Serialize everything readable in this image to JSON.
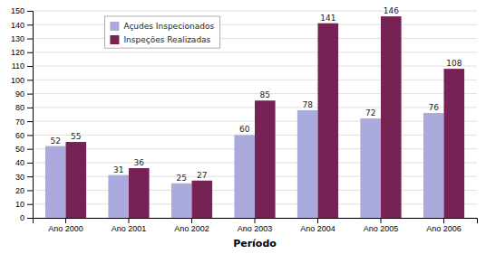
{
  "chart_data": {
    "type": "bar",
    "xlabel": "Período",
    "categories": [
      "Ano 2000",
      "Ano 2001",
      "Ano 2002",
      "Ano 2003",
      "Ano 2004",
      "Ano 2005",
      "Ano 2006"
    ],
    "series": [
      {
        "name": "Açudes Inspecionados",
        "color": "#aaaadd",
        "values": [
          52,
          31,
          25,
          60,
          78,
          72,
          76
        ]
      },
      {
        "name": "Inspeções Realizadas",
        "color": "#772255",
        "values": [
          55,
          36,
          27,
          85,
          141,
          146,
          108
        ]
      }
    ],
    "ylim": [
      0,
      150
    ],
    "yticks": [
      0,
      10,
      20,
      30,
      40,
      50,
      60,
      70,
      80,
      90,
      100,
      110,
      120,
      130,
      140,
      150
    ],
    "grid": true,
    "data_labels": true,
    "legend": "upper left"
  }
}
